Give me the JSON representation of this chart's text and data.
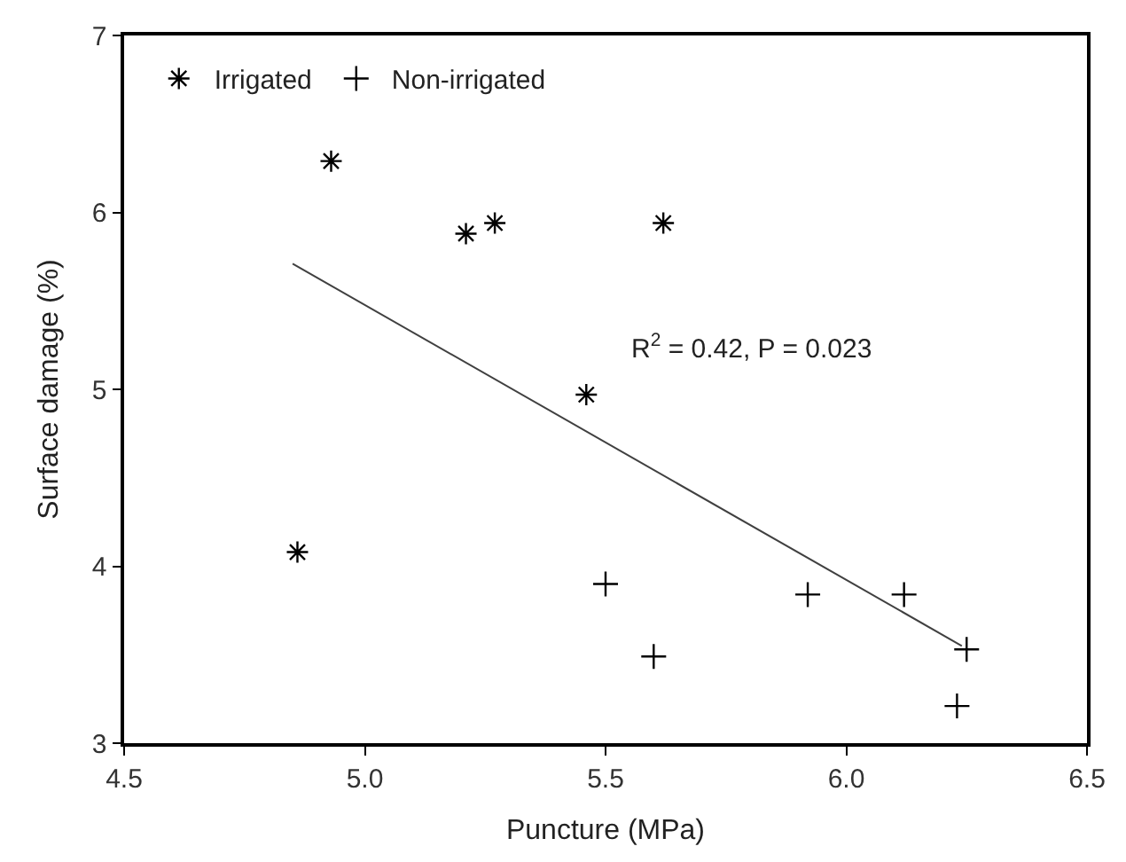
{
  "chart_data": {
    "type": "scatter",
    "xlabel": "Puncture (MPa)",
    "ylabel": "Surface damage (%)",
    "xlim": [
      4.5,
      6.5
    ],
    "xticks": [
      {
        "value": 4.5,
        "label": "4.5"
      },
      {
        "value": 5,
        "label": "5.0"
      },
      {
        "value": 5.5,
        "label": "5.5"
      },
      {
        "value": 6,
        "label": "6.0"
      },
      {
        "value": 6.5,
        "label": "6.5"
      }
    ],
    "ylim": [
      3,
      7
    ],
    "yticks": [
      3,
      4,
      5,
      6,
      7
    ],
    "legend": "top left",
    "annotations": [
      "R$^{2}$ = 0.42, P = 0.023"
    ],
    "series": [
      {
        "name": "Irrigated",
        "color": "#000000",
        "x": [
          4.93,
          5.21,
          5.27,
          5.62,
          5.46,
          4.86
        ],
        "values": [
          6.29,
          5.88,
          5.94,
          5.94,
          4.97,
          4.08
        ]
      },
      {
        "name": "Non-irrigated",
        "color": "#000000",
        "marker": "cross",
        "x": [
          5.5,
          5.6,
          5.92,
          6.12,
          6.25,
          6.23
        ],
        "values": [
          3.9,
          3.49,
          3.84,
          3.84,
          3.53,
          3.21
        ]
      },
      {
        "type": "line",
        "color": "#404040",
        "marker": "none",
        "line_style": "solid",
        "x": [
          4.85,
          6.24
        ],
        "values": [
          5.71,
          3.55
        ]
      }
    ]
  }
}
